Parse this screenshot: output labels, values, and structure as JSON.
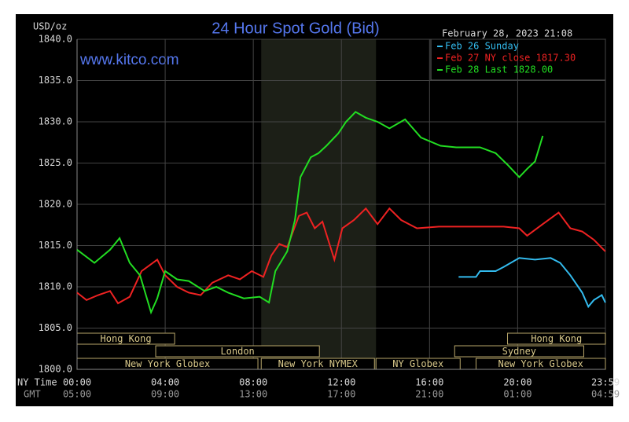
{
  "chart_data": {
    "type": "line",
    "title": "24 Hour Spot Gold (Bid)",
    "watermark": "www.kitco.com",
    "timestamp": "February 28, 2023 21:08",
    "y_unit": "USD/oz",
    "x_axis_label": "NY Time",
    "x2_axis_label": "GMT",
    "xlim": [
      0,
      23.983
    ],
    "xticks": [
      {
        "value": 0,
        "label": "00:00"
      },
      {
        "value": 4,
        "label": "04:00"
      },
      {
        "value": 8,
        "label": "08:00"
      },
      {
        "value": 12,
        "label": "12:00"
      },
      {
        "value": 16,
        "label": "16:00"
      },
      {
        "value": 20,
        "label": "20:00"
      },
      {
        "value": 23.983,
        "label": "23:59"
      }
    ],
    "x2ticks": [
      "05:00",
      "09:00",
      "13:00",
      "17:00",
      "21:00",
      "01:00",
      "04:59"
    ],
    "ylim": [
      1800,
      1840
    ],
    "yticks": [
      {
        "value": 1800,
        "label": "1800.0"
      },
      {
        "value": 1805,
        "label": "1805.0"
      },
      {
        "value": 1810,
        "label": "1810.0"
      },
      {
        "value": 1815,
        "label": "1815.0"
      },
      {
        "value": 1820,
        "label": "1820.0"
      },
      {
        "value": 1825,
        "label": "1825.0"
      },
      {
        "value": 1830,
        "label": "1830.0"
      },
      {
        "value": 1835,
        "label": "1835.0"
      },
      {
        "value": 1840,
        "label": "1840.0"
      }
    ],
    "grid": true,
    "highlight_x": [
      8.36,
      13.57
    ],
    "sessions": [
      {
        "name": "Hong Kong",
        "start": 0,
        "end": 4.43
      },
      {
        "name": "London",
        "start": 3.57,
        "end": 11.0
      },
      {
        "name": "New York Globex",
        "start": 0,
        "end": 8.21
      },
      {
        "name": "New York NYMEX",
        "start": 8.36,
        "end": 13.5
      },
      {
        "name": "NY Globex",
        "start": 13.57,
        "end": 17.39
      },
      {
        "name": "Hong Kong",
        "start": 19.54,
        "end": 23.983
      },
      {
        "name": "Sydney",
        "start": 17.14,
        "end": 23.0
      },
      {
        "name": "New York Globex",
        "start": 18.11,
        "end": 23.983
      }
    ],
    "series": [
      {
        "name": "Feb 26 Sunday",
        "color": "#33bbee",
        "x": [
          17.32,
          18.11,
          18.29,
          19.0,
          19.36,
          20.07,
          20.79,
          21.5,
          21.93,
          22.39,
          22.93,
          23.21,
          23.46,
          23.82,
          23.98
        ],
        "values": [
          1811.2,
          1811.2,
          1811.9,
          1811.9,
          1812.4,
          1813.5,
          1813.3,
          1813.5,
          1812.9,
          1811.4,
          1809.3,
          1807.6,
          1808.4,
          1809.0,
          1808.1
        ]
      },
      {
        "name": "Feb 27 NY close 1817.30",
        "color": "#ee2222",
        "x": [
          0,
          0.43,
          0.96,
          1.5,
          1.86,
          2.39,
          2.93,
          3.64,
          4.0,
          4.54,
          5.07,
          5.61,
          6.14,
          6.86,
          7.39,
          7.93,
          8.46,
          8.82,
          9.18,
          9.54,
          10.07,
          10.43,
          10.79,
          11.14,
          11.68,
          12.04,
          12.57,
          13.11,
          13.64,
          14.18,
          14.71,
          15.43,
          16.43,
          17.86,
          19.36,
          20.07,
          20.43,
          21.14,
          21.86,
          22.39,
          22.93,
          23.46,
          23.98
        ],
        "values": [
          1809.3,
          1808.4,
          1809.0,
          1809.5,
          1808.0,
          1808.8,
          1811.9,
          1813.3,
          1811.4,
          1810.0,
          1809.3,
          1809.0,
          1810.5,
          1811.4,
          1810.9,
          1811.9,
          1811.2,
          1813.8,
          1815.2,
          1814.8,
          1818.6,
          1819.0,
          1817.1,
          1817.9,
          1813.3,
          1817.1,
          1818.1,
          1819.5,
          1817.6,
          1819.5,
          1818.1,
          1817.1,
          1817.3,
          1817.3,
          1817.3,
          1817.1,
          1816.2,
          1817.6,
          1819.0,
          1817.1,
          1816.7,
          1815.7,
          1814.3
        ]
      },
      {
        "name": "Feb 28 Last 1828.00",
        "color": "#22dd22",
        "x": [
          0,
          0.79,
          1.5,
          1.93,
          2.39,
          2.86,
          3.36,
          3.64,
          4.0,
          4.54,
          5.07,
          5.79,
          6.32,
          6.86,
          7.57,
          8.29,
          8.71,
          9.0,
          9.54,
          9.89,
          10.14,
          10.61,
          10.96,
          11.32,
          11.86,
          12.21,
          12.64,
          13.11,
          13.64,
          14.18,
          14.89,
          15.61,
          16.5,
          17.21,
          18.29,
          19.0,
          19.54,
          20.07,
          20.43,
          20.79,
          21.14
        ],
        "values": [
          1814.5,
          1812.9,
          1814.5,
          1815.9,
          1812.9,
          1811.4,
          1806.9,
          1808.6,
          1811.9,
          1810.9,
          1810.7,
          1809.5,
          1810.0,
          1809.3,
          1808.6,
          1808.8,
          1808.1,
          1811.9,
          1814.3,
          1818.1,
          1823.3,
          1825.7,
          1826.2,
          1827.1,
          1828.6,
          1830.0,
          1831.2,
          1830.5,
          1830.0,
          1829.2,
          1830.3,
          1828.1,
          1827.1,
          1826.9,
          1826.9,
          1826.2,
          1824.8,
          1823.3,
          1824.3,
          1825.2,
          1828.3
        ]
      }
    ]
  }
}
